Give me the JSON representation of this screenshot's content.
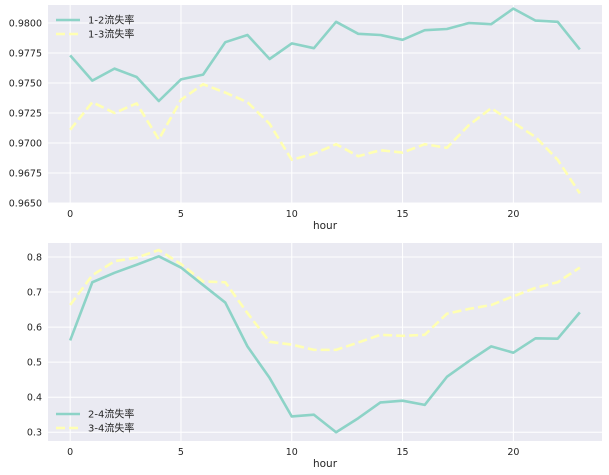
{
  "chart_data": [
    {
      "type": "line",
      "xlabel": "hour",
      "ylabel": "",
      "xlim": [
        -1,
        24
      ],
      "ylim": [
        0.965,
        0.9815
      ],
      "xticks": [
        0,
        5,
        10,
        15,
        20
      ],
      "yticks": [
        0.965,
        0.9675,
        0.97,
        0.9725,
        0.975,
        0.9775,
        0.98
      ],
      "ytick_labels": [
        "0.9650",
        "0.9675",
        "0.9700",
        "0.9725",
        "0.9750",
        "0.9775",
        "0.9800"
      ],
      "grid": true,
      "legend_position": "upper left",
      "x": [
        0,
        1,
        2,
        3,
        4,
        5,
        6,
        7,
        8,
        9,
        10,
        11,
        12,
        13,
        14,
        15,
        16,
        17,
        18,
        19,
        20,
        21,
        22,
        23
      ],
      "series": [
        {
          "name": "1-2流失率",
          "color": "#8dd3c7",
          "style": "solid",
          "values": [
            0.9773,
            0.9752,
            0.9762,
            0.9755,
            0.9735,
            0.9753,
            0.9757,
            0.9784,
            0.979,
            0.977,
            0.9783,
            0.9779,
            0.9801,
            0.9791,
            0.979,
            0.9786,
            0.9794,
            0.9795,
            0.98,
            0.9799,
            0.9812,
            0.9802,
            0.9801,
            0.9778
          ]
        },
        {
          "name": "1-3流失率",
          "color": "#ffffb3",
          "style": "dashed",
          "values": [
            0.9711,
            0.9734,
            0.9725,
            0.9733,
            0.9703,
            0.9736,
            0.9749,
            0.9742,
            0.9734,
            0.9716,
            0.9686,
            0.9691,
            0.9699,
            0.9689,
            0.9694,
            0.9692,
            0.9699,
            0.9696,
            0.9715,
            0.9729,
            0.9717,
            0.9705,
            0.9686,
            0.9658
          ]
        }
      ]
    },
    {
      "type": "line",
      "xlabel": "hour",
      "ylabel": "",
      "xlim": [
        -1,
        24
      ],
      "ylim": [
        0.275,
        0.84
      ],
      "xticks": [
        0,
        5,
        10,
        15,
        20
      ],
      "yticks": [
        0.3,
        0.4,
        0.5,
        0.6,
        0.7,
        0.8
      ],
      "ytick_labels": [
        "0.3",
        "0.4",
        "0.5",
        "0.6",
        "0.7",
        "0.8"
      ],
      "grid": true,
      "legend_position": "lower left",
      "x": [
        0,
        1,
        2,
        3,
        4,
        5,
        6,
        7,
        8,
        9,
        10,
        11,
        12,
        13,
        14,
        15,
        16,
        17,
        18,
        19,
        20,
        21,
        22,
        23
      ],
      "series": [
        {
          "name": "2-4流失率",
          "color": "#8dd3c7",
          "style": "solid",
          "values": [
            0.562,
            0.728,
            0.755,
            0.778,
            0.802,
            0.77,
            0.72,
            0.67,
            0.545,
            0.455,
            0.345,
            0.35,
            0.3,
            0.34,
            0.385,
            0.39,
            0.378,
            0.458,
            0.503,
            0.545,
            0.527,
            0.568,
            0.567,
            0.642
          ]
        },
        {
          "name": "3-4流失率",
          "color": "#ffffb3",
          "style": "dashed",
          "values": [
            0.663,
            0.748,
            0.788,
            0.798,
            0.82,
            0.78,
            0.73,
            0.728,
            0.64,
            0.558,
            0.55,
            0.535,
            0.535,
            0.556,
            0.578,
            0.575,
            0.578,
            0.638,
            0.652,
            0.663,
            0.688,
            0.712,
            0.728,
            0.77
          ]
        }
      ]
    }
  ]
}
